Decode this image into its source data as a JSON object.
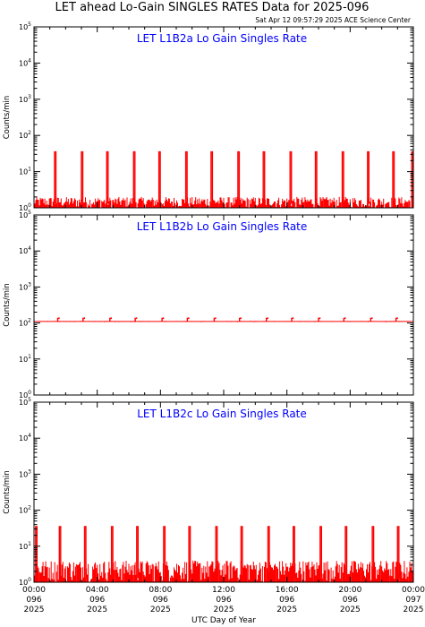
{
  "header": {
    "title": "LET ahead Lo-Gain SINGLES RATES Data for 2025-096",
    "timestamp": "Sat Apr 12 09:57:29 2025 ACE Science Center"
  },
  "xaxis": {
    "label": "UTC Day of Year",
    "ticks": [
      {
        "hour": 0,
        "time": "00:00",
        "doy": "096",
        "year": "2025"
      },
      {
        "hour": 4,
        "time": "04:00",
        "doy": "096",
        "year": "2025"
      },
      {
        "hour": 8,
        "time": "08:00",
        "doy": "096",
        "year": "2025"
      },
      {
        "hour": 12,
        "time": "12:00",
        "doy": "096",
        "year": "2025"
      },
      {
        "hour": 16,
        "time": "16:00",
        "doy": "096",
        "year": "2025"
      },
      {
        "hour": 20,
        "time": "20:00",
        "doy": "096",
        "year": "2025"
      },
      {
        "hour": 24,
        "time": "00:00",
        "doy": "097",
        "year": "2025"
      }
    ]
  },
  "colors": {
    "data": "#ff0000",
    "panel_title": "#0000ff",
    "axes": "#000000"
  },
  "chart_data": [
    {
      "type": "line",
      "title": "LET L1B2a Lo Gain Singles Rate",
      "ylabel": "Counts/min",
      "yscale": "log",
      "ylim": [
        1,
        100000
      ],
      "ytick_exponents": [
        0,
        1,
        2,
        3,
        4,
        5
      ],
      "xlim_hours": [
        0,
        24
      ],
      "baseline_range": [
        1,
        2
      ],
      "spike_value": 35,
      "spike_hours": [
        1.3,
        3.0,
        4.6,
        6.3,
        7.9,
        9.6,
        11.2,
        12.9,
        14.5,
        16.2,
        17.8,
        19.5,
        21.1,
        22.7,
        23.9
      ]
    },
    {
      "type": "line",
      "title": "LET L1B2b Lo Gain Singles Rate",
      "ylabel": "Counts/min",
      "yscale": "log",
      "ylim": [
        1,
        100000
      ],
      "ytick_exponents": [
        0,
        1,
        2,
        3,
        4,
        5
      ],
      "xlim_hours": [
        0,
        24
      ],
      "baseline_value": 110,
      "spike_value": 135,
      "spike_hours": [
        1.5,
        3.1,
        4.8,
        6.4,
        8.1,
        9.7,
        11.4,
        13.0,
        14.7,
        16.3,
        18.0,
        19.6,
        21.3,
        22.9
      ]
    },
    {
      "type": "line",
      "title": "LET L1B2c Lo Gain Singles Rate",
      "ylabel": "Counts/min",
      "yscale": "log",
      "ylim": [
        1,
        100000
      ],
      "ytick_exponents": [
        0,
        1,
        2,
        3,
        4,
        5
      ],
      "xlim_hours": [
        0,
        24
      ],
      "baseline_range": [
        1,
        4
      ],
      "spike_value": 35,
      "spike_hours": [
        0.1,
        1.6,
        3.2,
        4.9,
        6.5,
        8.2,
        9.8,
        11.5,
        13.1,
        14.8,
        16.4,
        18.1,
        19.7,
        21.4,
        23.0
      ]
    }
  ]
}
